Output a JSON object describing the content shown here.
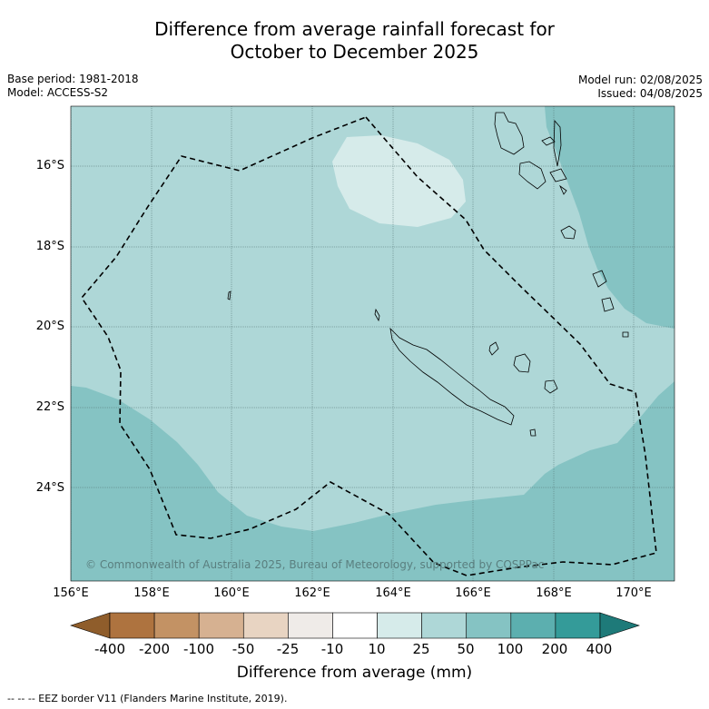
{
  "title_line1": "Difference from average rainfall forecast for",
  "title_line2": "October to December 2025",
  "base_period": "Base period: 1981-2018",
  "model": "Model: ACCESS-S2",
  "model_run": "Model run: 02/08/2025",
  "issued": "Issued: 04/08/2025",
  "copyright": "© Commonwealth of Australia 2025, Bureau of Meteorology, supported by COSPPac",
  "lat_ticks": [
    "16°S",
    "18°S",
    "20°S",
    "22°S",
    "24°S"
  ],
  "lon_ticks": [
    "156°E",
    "158°E",
    "160°E",
    "162°E",
    "164°E",
    "166°E",
    "168°E",
    "170°E"
  ],
  "colorbar": {
    "labels": [
      "-400",
      "-200",
      "-100",
      "-50",
      "-25",
      "-10",
      "10",
      "25",
      "50",
      "100",
      "200",
      "400"
    ],
    "colors": [
      "#8f5d2b",
      "#ae733f",
      "#c39264",
      "#d6b191",
      "#e8d4c2",
      "#efebe8",
      "#ffffff",
      "#d6ebea",
      "#aed7d7",
      "#85c3c3",
      "#5cafaf",
      "#349b99",
      "#1e7a79"
    ],
    "title": "Difference from average (mm)"
  },
  "map_colors": {
    "light": "#d6ebea",
    "base": "#aed7d7",
    "dark": "#85c3c3"
  },
  "footer": "--  --  -- EEZ border V11 (Flanders Marine Institute, 2019)."
}
